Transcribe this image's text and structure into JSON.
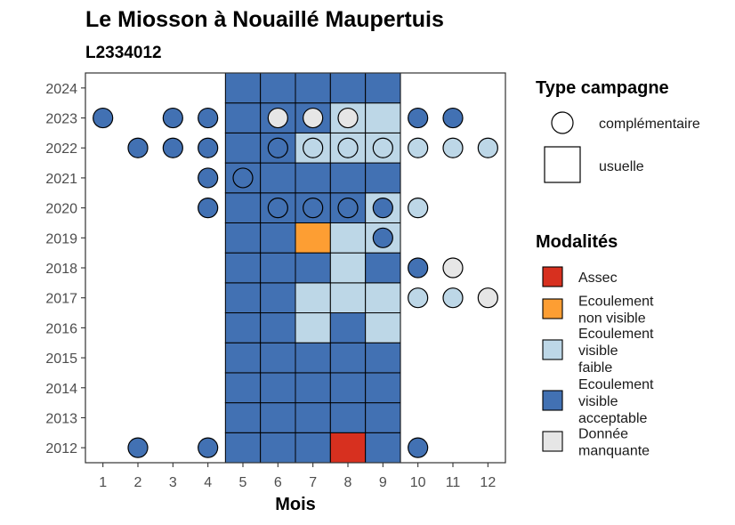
{
  "chart_data": {
    "type": "heatmap",
    "title": "Le Miosson à Nouaillé Maupertuis",
    "subtitle": "L2334012",
    "xlabel": "Mois",
    "ylabel": "",
    "x_ticks": [
      "1",
      "2",
      "3",
      "4",
      "5",
      "6",
      "7",
      "8",
      "9",
      "10",
      "11",
      "12"
    ],
    "y_ticks": [
      "2012",
      "2013",
      "2014",
      "2015",
      "2016",
      "2017",
      "2018",
      "2019",
      "2020",
      "2021",
      "2022",
      "2023",
      "2024"
    ],
    "xlim": [
      0.5,
      12.5
    ],
    "ylim": [
      2011.5,
      2024.5
    ],
    "grid": false,
    "colors": {
      "Assec": "#d7301f",
      "Ecoulement non visible": "#fd9e33",
      "Ecoulement visible faible": "#bdd7e7",
      "Ecoulement visible acceptable": "#4271b3",
      "Donnée manquante": "#e6e6e6"
    },
    "usuelle": [
      {
        "year": 2012,
        "months": [
          5,
          6,
          7,
          8,
          9
        ],
        "values": [
          "Ecoulement visible acceptable",
          "Ecoulement visible acceptable",
          "Ecoulement visible acceptable",
          "Assec",
          "Ecoulement visible acceptable"
        ]
      },
      {
        "year": 2013,
        "months": [
          5,
          6,
          7,
          8,
          9
        ],
        "values": [
          "Ecoulement visible acceptable",
          "Ecoulement visible acceptable",
          "Ecoulement visible acceptable",
          "Ecoulement visible acceptable",
          "Ecoulement visible acceptable"
        ]
      },
      {
        "year": 2014,
        "months": [
          5,
          6,
          7,
          8,
          9
        ],
        "values": [
          "Ecoulement visible acceptable",
          "Ecoulement visible acceptable",
          "Ecoulement visible acceptable",
          "Ecoulement visible acceptable",
          "Ecoulement visible acceptable"
        ]
      },
      {
        "year": 2015,
        "months": [
          5,
          6,
          7,
          8,
          9
        ],
        "values": [
          "Ecoulement visible acceptable",
          "Ecoulement visible acceptable",
          "Ecoulement visible acceptable",
          "Ecoulement visible acceptable",
          "Ecoulement visible acceptable"
        ]
      },
      {
        "year": 2016,
        "months": [
          5,
          6,
          7,
          8,
          9
        ],
        "values": [
          "Ecoulement visible acceptable",
          "Ecoulement visible acceptable",
          "Ecoulement visible faible",
          "Ecoulement visible acceptable",
          "Ecoulement visible faible"
        ]
      },
      {
        "year": 2017,
        "months": [
          5,
          6,
          7,
          8,
          9
        ],
        "values": [
          "Ecoulement visible acceptable",
          "Ecoulement visible acceptable",
          "Ecoulement visible faible",
          "Ecoulement visible faible",
          "Ecoulement visible faible"
        ]
      },
      {
        "year": 2018,
        "months": [
          5,
          6,
          7,
          8,
          9
        ],
        "values": [
          "Ecoulement visible acceptable",
          "Ecoulement visible acceptable",
          "Ecoulement visible acceptable",
          "Ecoulement visible faible",
          "Ecoulement visible acceptable"
        ]
      },
      {
        "year": 2019,
        "months": [
          5,
          6,
          7,
          8,
          9
        ],
        "values": [
          "Ecoulement visible acceptable",
          "Ecoulement visible acceptable",
          "Ecoulement non visible",
          "Ecoulement visible faible",
          "Ecoulement visible faible"
        ]
      },
      {
        "year": 2020,
        "months": [
          5,
          6,
          7,
          8,
          9
        ],
        "values": [
          "Ecoulement visible acceptable",
          "Ecoulement visible acceptable",
          "Ecoulement visible acceptable",
          "Ecoulement visible acceptable",
          "Ecoulement visible faible"
        ]
      },
      {
        "year": 2021,
        "months": [
          5,
          6,
          7,
          8,
          9
        ],
        "values": [
          "Ecoulement visible acceptable",
          "Ecoulement visible acceptable",
          "Ecoulement visible acceptable",
          "Ecoulement visible acceptable",
          "Ecoulement visible acceptable"
        ]
      },
      {
        "year": 2022,
        "months": [
          5,
          6,
          7,
          8,
          9
        ],
        "values": [
          "Ecoulement visible acceptable",
          "Ecoulement visible acceptable",
          "Ecoulement visible faible",
          "Ecoulement visible faible",
          "Ecoulement visible faible"
        ]
      },
      {
        "year": 2023,
        "months": [
          5,
          6,
          7,
          8,
          9
        ],
        "values": [
          "Ecoulement visible acceptable",
          "Ecoulement visible acceptable",
          "Ecoulement visible acceptable",
          "Ecoulement visible faible",
          "Ecoulement visible faible"
        ]
      },
      {
        "year": 2024,
        "months": [
          5,
          6,
          7,
          8,
          9
        ],
        "values": [
          "Ecoulement visible acceptable",
          "Ecoulement visible acceptable",
          "Ecoulement visible acceptable",
          "Ecoulement visible acceptable",
          "Ecoulement visible acceptable"
        ]
      }
    ],
    "complementaire": [
      {
        "year": 2012,
        "month": 2,
        "value": "Ecoulement visible acceptable"
      },
      {
        "year": 2012,
        "month": 4,
        "value": "Ecoulement visible acceptable"
      },
      {
        "year": 2012,
        "month": 10,
        "value": "Ecoulement visible acceptable"
      },
      {
        "year": 2017,
        "month": 10,
        "value": "Ecoulement visible faible"
      },
      {
        "year": 2017,
        "month": 11,
        "value": "Ecoulement visible faible"
      },
      {
        "year": 2017,
        "month": 12,
        "value": "Donnée manquante"
      },
      {
        "year": 2018,
        "month": 10,
        "value": "Ecoulement visible acceptable"
      },
      {
        "year": 2018,
        "month": 11,
        "value": "Donnée manquante"
      },
      {
        "year": 2019,
        "month": 9,
        "value": "Ecoulement visible acceptable"
      },
      {
        "year": 2020,
        "month": 4,
        "value": "Ecoulement visible acceptable"
      },
      {
        "year": 2020,
        "month": 6,
        "value": "Ecoulement visible acceptable"
      },
      {
        "year": 2020,
        "month": 7,
        "value": "Ecoulement visible acceptable"
      },
      {
        "year": 2020,
        "month": 8,
        "value": "Ecoulement visible acceptable"
      },
      {
        "year": 2020,
        "month": 9,
        "value": "Ecoulement visible acceptable"
      },
      {
        "year": 2020,
        "month": 10,
        "value": "Ecoulement visible faible"
      },
      {
        "year": 2021,
        "month": 4,
        "value": "Ecoulement visible acceptable"
      },
      {
        "year": 2021,
        "month": 5,
        "value": "Ecoulement visible acceptable"
      },
      {
        "year": 2022,
        "month": 2,
        "value": "Ecoulement visible acceptable"
      },
      {
        "year": 2022,
        "month": 3,
        "value": "Ecoulement visible acceptable"
      },
      {
        "year": 2022,
        "month": 4,
        "value": "Ecoulement visible acceptable"
      },
      {
        "year": 2022,
        "month": 6,
        "value": "Ecoulement visible acceptable"
      },
      {
        "year": 2022,
        "month": 7,
        "value": "Ecoulement visible faible"
      },
      {
        "year": 2022,
        "month": 8,
        "value": "Ecoulement visible faible"
      },
      {
        "year": 2022,
        "month": 9,
        "value": "Ecoulement visible faible"
      },
      {
        "year": 2022,
        "month": 10,
        "value": "Ecoulement visible faible"
      },
      {
        "year": 2022,
        "month": 11,
        "value": "Ecoulement visible faible"
      },
      {
        "year": 2022,
        "month": 12,
        "value": "Ecoulement visible faible"
      },
      {
        "year": 2023,
        "month": 1,
        "value": "Ecoulement visible acceptable"
      },
      {
        "year": 2023,
        "month": 3,
        "value": "Ecoulement visible acceptable"
      },
      {
        "year": 2023,
        "month": 4,
        "value": "Ecoulement visible acceptable"
      },
      {
        "year": 2023,
        "month": 6,
        "value": "Donnée manquante"
      },
      {
        "year": 2023,
        "month": 7,
        "value": "Donnée manquante"
      },
      {
        "year": 2023,
        "month": 8,
        "value": "Donnée manquante"
      },
      {
        "year": 2023,
        "month": 10,
        "value": "Ecoulement visible acceptable"
      },
      {
        "year": 2023,
        "month": 11,
        "value": "Ecoulement visible acceptable"
      }
    ],
    "legend": {
      "placement": "right",
      "type_campagne": {
        "title": "Type campagne",
        "entries": [
          "complémentaire",
          "usuelle"
        ]
      },
      "modalites": {
        "title": "Modalités",
        "entries": [
          {
            "key": "Assec",
            "lines": [
              "Assec"
            ]
          },
          {
            "key": "Ecoulement non visible",
            "lines": [
              "Ecoulement",
              "non visible"
            ]
          },
          {
            "key": "Ecoulement visible faible",
            "lines": [
              "Ecoulement",
              "visible",
              "faible"
            ]
          },
          {
            "key": "Ecoulement visible acceptable",
            "lines": [
              "Ecoulement",
              "visible",
              "acceptable"
            ]
          },
          {
            "key": "Donnée manquante",
            "lines": [
              "Donnée",
              "manquante"
            ]
          }
        ]
      }
    }
  }
}
